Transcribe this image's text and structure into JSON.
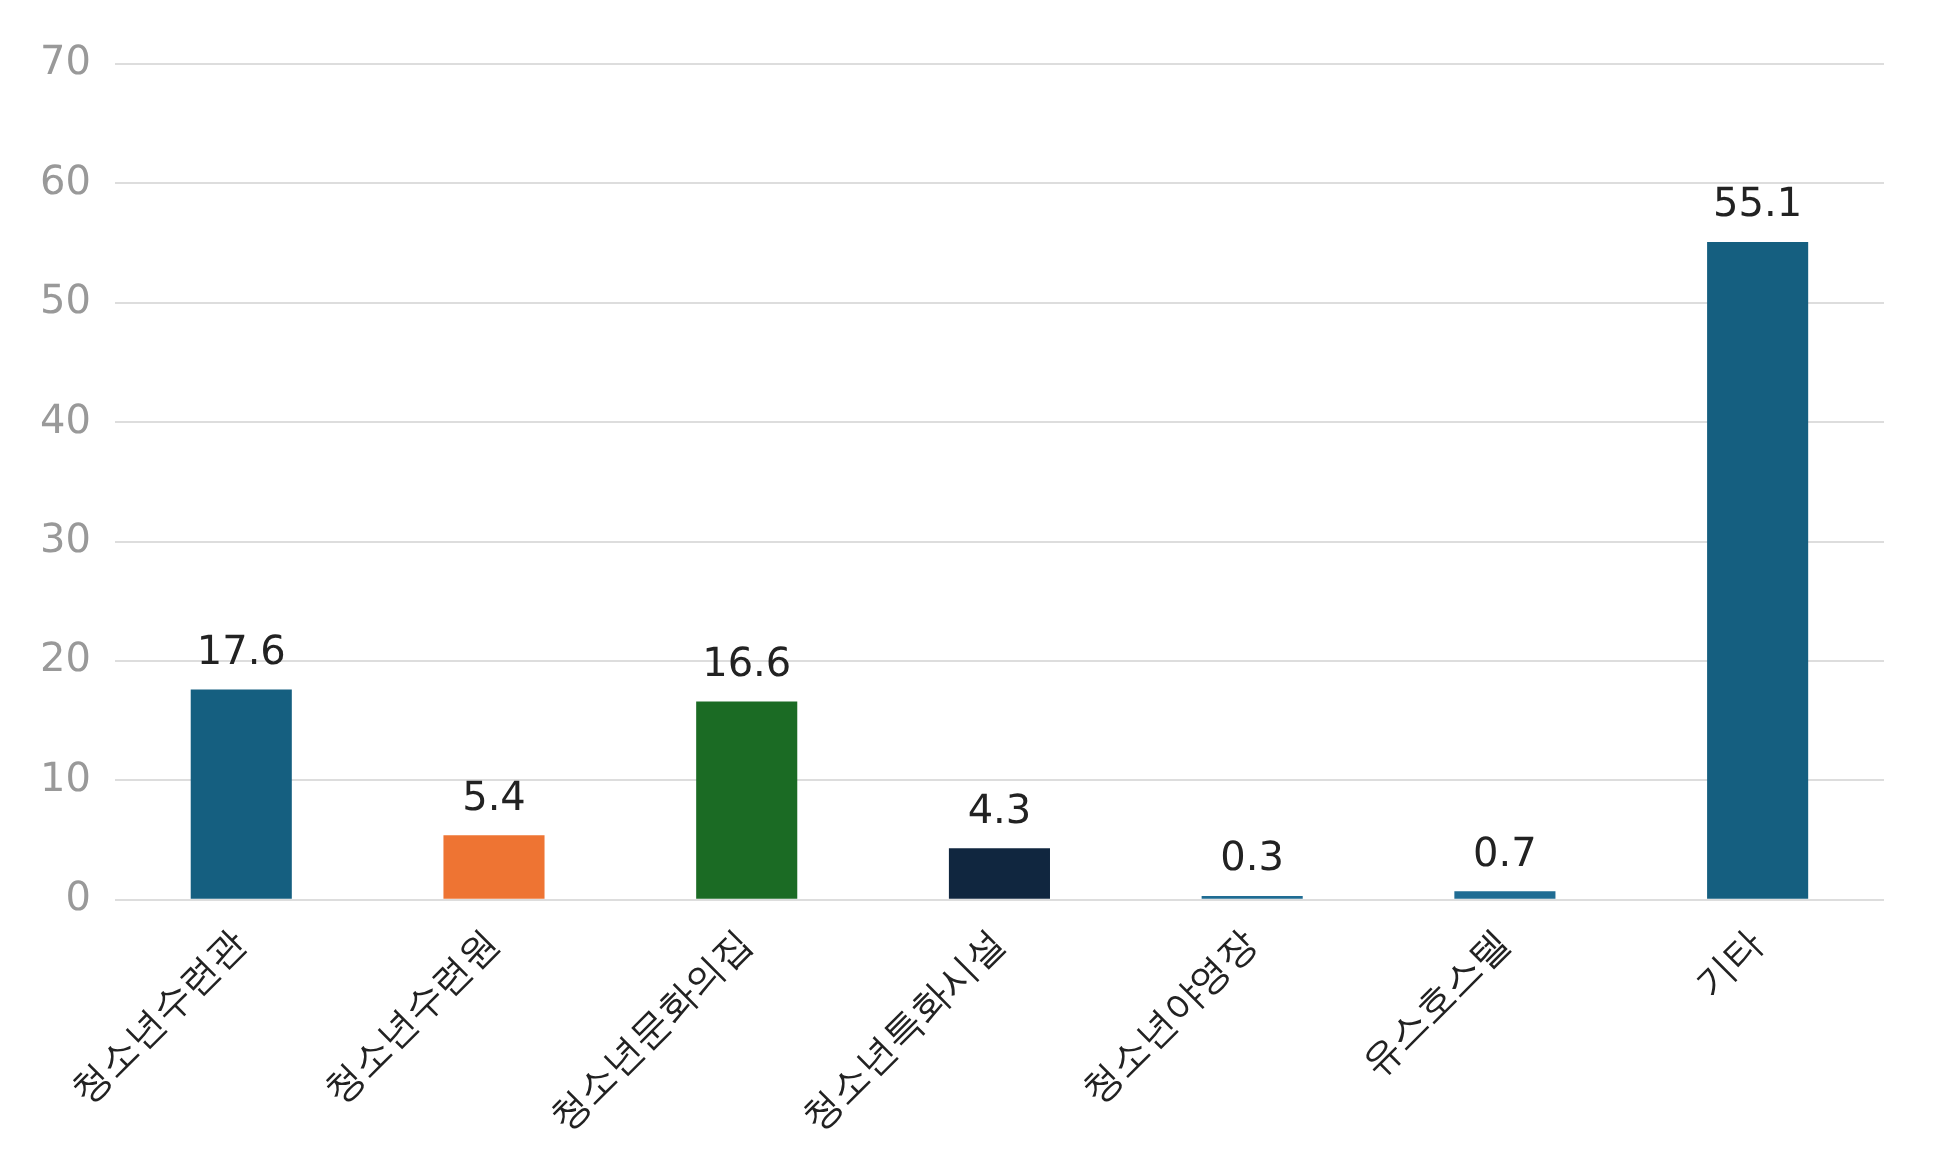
{
  "chart_data": {
    "type": "bar",
    "categories": [
      "청소년수련관",
      "청소년수련원",
      "청소년문화의집",
      "청소년특화시설",
      "청소년야영장",
      "유스호스텔",
      "기타"
    ],
    "values": [
      17.6,
      5.4,
      16.6,
      4.3,
      0.3,
      0.7,
      55.1
    ],
    "colors": [
      "#155f80",
      "#ee7433",
      "#1b6b24",
      "#10263f",
      "#1f6c93",
      "#1f6c93",
      "#155f80"
    ],
    "ylim": [
      0,
      70
    ],
    "yticks": [
      0,
      10,
      20,
      30,
      40,
      50,
      60,
      70
    ],
    "grid": "y",
    "data_labels": true,
    "legend": false
  }
}
